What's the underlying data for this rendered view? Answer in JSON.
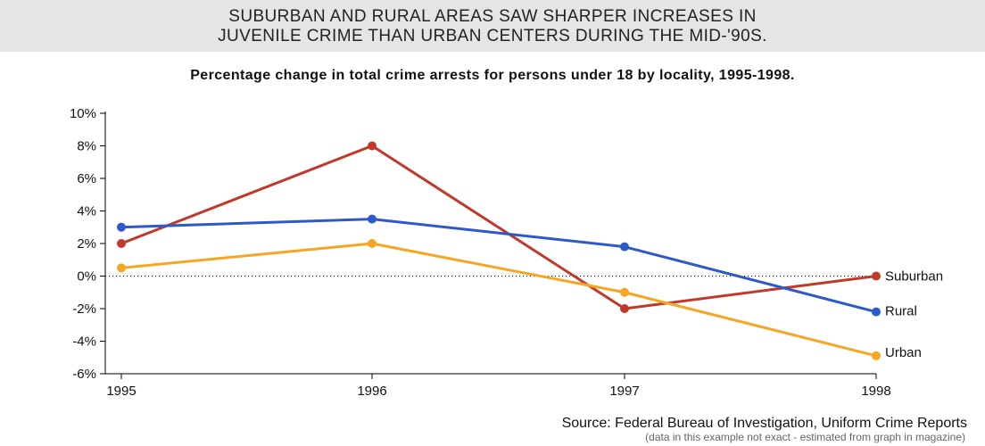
{
  "banner": {
    "line1": "SUBURBAN AND RURAL AREAS SAW SHARPER INCREASES IN",
    "line2": "JUVENILE CRIME THAN URBAN CENTERS DURING THE MID-'90S."
  },
  "subtitle": "Percentage change in total crime arrests for persons under 18 by locality, 1995-1998.",
  "source": {
    "text": "Source: Federal Bureau of Investigation, Uniform Crime Reports",
    "note": "(data in this example not exact - estimated from graph in magazine)"
  },
  "chart_data": {
    "type": "line",
    "title": "Percentage change in total crime arrests for persons under 18 by locality, 1995-1998.",
    "x": [
      "1995",
      "1996",
      "1997",
      "1998"
    ],
    "ylim": [
      -6,
      10
    ],
    "yticks": [
      10,
      8,
      6,
      4,
      2,
      0,
      -2,
      -4,
      -6
    ],
    "ytick_labels": [
      "10%",
      "8%",
      "6%",
      "4%",
      "2%",
      "0%",
      "-2%",
      "-4%",
      "-6%"
    ],
    "zero_line": "dotted",
    "grid": false,
    "legend": "direct labels at line ends",
    "series": [
      {
        "name": "Suburban",
        "color": "#c0392b",
        "values": [
          2.0,
          8.0,
          -2.0,
          0.0
        ]
      },
      {
        "name": "Rural",
        "color": "#2e59c9",
        "values": [
          3.0,
          3.5,
          1.8,
          -2.2
        ]
      },
      {
        "name": "Urban",
        "color": "#f5a623",
        "values": [
          0.5,
          2.0,
          -1.0,
          -4.9
        ]
      }
    ]
  }
}
